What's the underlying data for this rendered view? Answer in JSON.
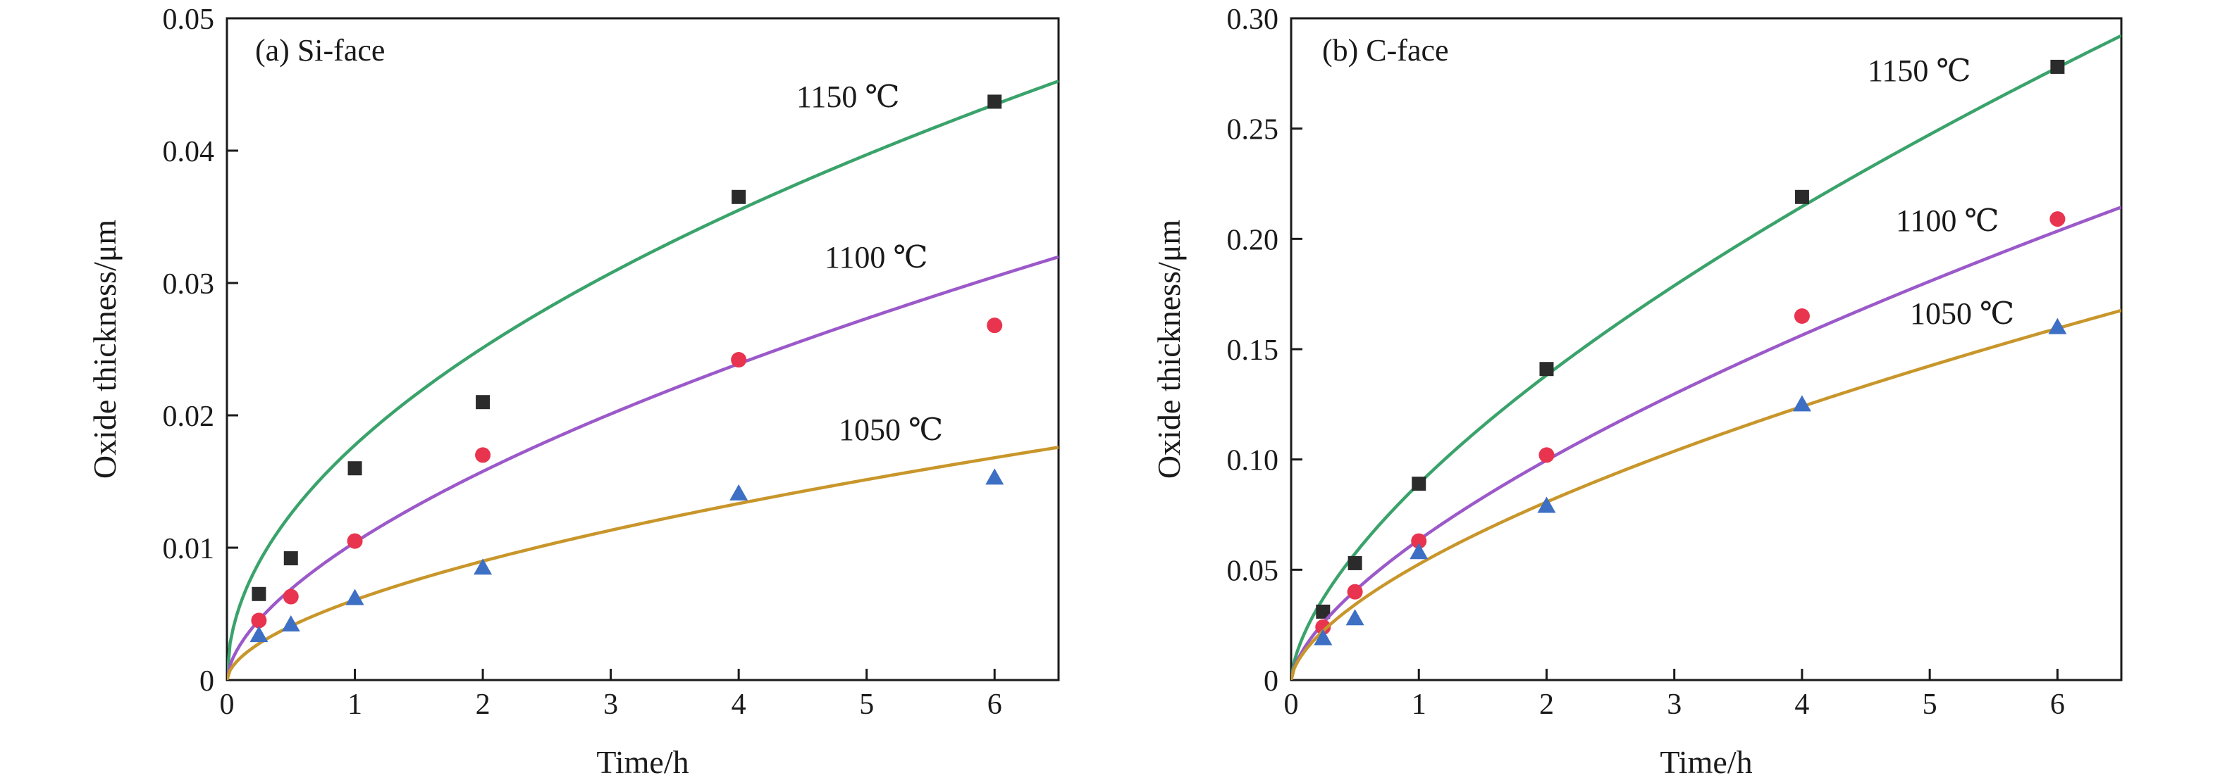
{
  "chart_data": [
    {
      "type": "scatter",
      "panel_label": "(a) Si-face",
      "xlabel": "Time/h",
      "ylabel": "Oxide thickness/μm",
      "xlim": [
        0,
        6.5
      ],
      "ylim": [
        0,
        0.05
      ],
      "xticks": [
        0,
        1,
        2,
        3,
        4,
        5,
        6
      ],
      "yticks": [
        0,
        0.01,
        0.02,
        0.03,
        0.04,
        0.05
      ],
      "ytick_labels": [
        "0",
        "0.01",
        "0.02",
        "0.03",
        "0.04",
        "0.05"
      ],
      "series": [
        {
          "name": "1150 ℃",
          "marker": "square",
          "marker_color": "#2b2b2b",
          "line_color": "#3aa36b",
          "x": [
            0.25,
            0.5,
            1,
            2,
            4,
            6
          ],
          "y": [
            0.0065,
            0.0092,
            0.016,
            0.021,
            0.0365,
            0.0437
          ],
          "fit_coeff": 0.01775,
          "fit_exp": 0.5
        },
        {
          "name": "1100 ℃",
          "marker": "circle",
          "marker_color": "#e8344e",
          "line_color": "#9b59c9",
          "x": [
            0.25,
            0.5,
            1,
            2,
            4,
            6
          ],
          "y": [
            0.0045,
            0.0063,
            0.0105,
            0.017,
            0.0242,
            0.0268
          ],
          "fit_coeff": 0.0104,
          "fit_exp": 0.6
        },
        {
          "name": "1050 ℃",
          "marker": "triangle",
          "marker_color": "#3d6fc4",
          "line_color": "#c8962a",
          "x": [
            0.25,
            0.5,
            1,
            2,
            4,
            6
          ],
          "y": [
            0.0034,
            0.0042,
            0.0062,
            0.0085,
            0.0141,
            0.0153
          ],
          "fit_coeff": 0.00605,
          "fit_exp": 0.57
        }
      ]
    },
    {
      "type": "scatter",
      "panel_label": "(b) C-face",
      "xlabel": "Time/h",
      "ylabel": "Oxide thickness/μm",
      "xlim": [
        0,
        6.5
      ],
      "ylim": [
        0,
        0.3
      ],
      "xticks": [
        0,
        1,
        2,
        3,
        4,
        5,
        6
      ],
      "yticks": [
        0,
        0.05,
        0.1,
        0.15,
        0.2,
        0.25,
        0.3
      ],
      "ytick_labels": [
        "0",
        "0.05",
        "0.10",
        "0.15",
        "0.20",
        "0.25",
        "0.30"
      ],
      "series": [
        {
          "name": "1150 ℃",
          "marker": "square",
          "marker_color": "#2b2b2b",
          "line_color": "#3aa36b",
          "x": [
            0.25,
            0.5,
            1,
            2,
            4,
            6
          ],
          "y": [
            0.031,
            0.053,
            0.089,
            0.141,
            0.219,
            0.278
          ],
          "fit_coeff": 0.089,
          "fit_exp": 0.635
        },
        {
          "name": "1100 ℃",
          "marker": "circle",
          "marker_color": "#e8344e",
          "line_color": "#9b59c9",
          "x": [
            0.25,
            0.5,
            1,
            2,
            4,
            6
          ],
          "y": [
            0.024,
            0.04,
            0.063,
            0.102,
            0.165,
            0.209
          ],
          "fit_coeff": 0.0635,
          "fit_exp": 0.65
        },
        {
          "name": "1050 ℃",
          "marker": "triangle",
          "marker_color": "#3d6fc4",
          "line_color": "#c8962a",
          "x": [
            0.25,
            0.5,
            1,
            2,
            4,
            6
          ],
          "y": [
            0.019,
            0.028,
            0.058,
            0.079,
            0.125,
            0.16
          ],
          "fit_coeff": 0.0525,
          "fit_exp": 0.62
        }
      ]
    }
  ]
}
